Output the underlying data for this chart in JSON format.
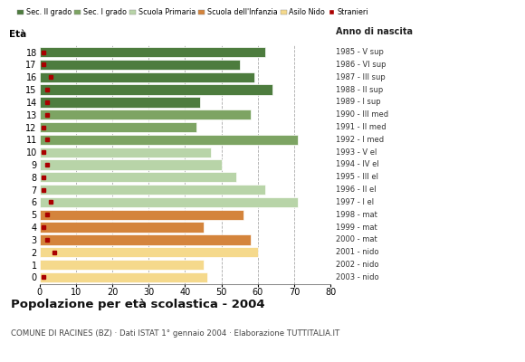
{
  "ages": [
    18,
    17,
    16,
    15,
    14,
    13,
    12,
    11,
    10,
    9,
    8,
    7,
    6,
    5,
    4,
    3,
    2,
    1,
    0
  ],
  "years": [
    "1985 - V sup",
    "1986 - VI sup",
    "1987 - III sup",
    "1988 - II sup",
    "1989 - I sup",
    "1990 - III med",
    "1991 - II med",
    "1992 - I med",
    "1993 - V el",
    "1994 - IV el",
    "1995 - III el",
    "1996 - II el",
    "1997 - I el",
    "1998 - mat",
    "1999 - mat",
    "2000 - mat",
    "2001 - nido",
    "2002 - nido",
    "2003 - nido"
  ],
  "values": [
    62,
    55,
    59,
    64,
    44,
    58,
    43,
    71,
    47,
    50,
    54,
    62,
    71,
    56,
    45,
    58,
    60,
    45,
    46
  ],
  "stranieri": [
    1,
    1,
    3,
    2,
    2,
    2,
    1,
    2,
    1,
    2,
    1,
    1,
    3,
    2,
    1,
    2,
    4,
    0,
    1
  ],
  "categories": [
    "Sec. II grado",
    "Sec. I grado",
    "Scuola Primaria",
    "Scuola dell'Infanzia",
    "Asilo Nido"
  ],
  "bar_colors": {
    "Sec. II grado": "#4d7c3e",
    "Sec. I grado": "#7da463",
    "Scuola Primaria": "#b8d4a8",
    "Scuola dell'Infanzia": "#d4843c",
    "Asilo Nido": "#f5d98c"
  },
  "age_category": {
    "18": "Sec. II grado",
    "17": "Sec. II grado",
    "16": "Sec. II grado",
    "15": "Sec. II grado",
    "14": "Sec. II grado",
    "13": "Sec. I grado",
    "12": "Sec. I grado",
    "11": "Sec. I grado",
    "10": "Scuola Primaria",
    "9": "Scuola Primaria",
    "8": "Scuola Primaria",
    "7": "Scuola Primaria",
    "6": "Scuola Primaria",
    "5": "Scuola dell'Infanzia",
    "4": "Scuola dell'Infanzia",
    "3": "Scuola dell'Infanzia",
    "2": "Asilo Nido",
    "1": "Asilo Nido",
    "0": "Asilo Nido"
  },
  "title": "Popolazione per età scolastica - 2004",
  "subtitle": "COMUNE DI RACINES (BZ) · Dati ISTAT 1° gennaio 2004 · Elaborazione TUTTITALIA.IT",
  "xlabel_left": "Età",
  "xlabel_right": "Anno di nascita",
  "xlim": [
    0,
    80
  ],
  "xticks": [
    0,
    10,
    20,
    30,
    40,
    50,
    60,
    70,
    80
  ],
  "stranieri_color": "#aa0000",
  "background_color": "#ffffff",
  "grid_color": "#aaaaaa"
}
